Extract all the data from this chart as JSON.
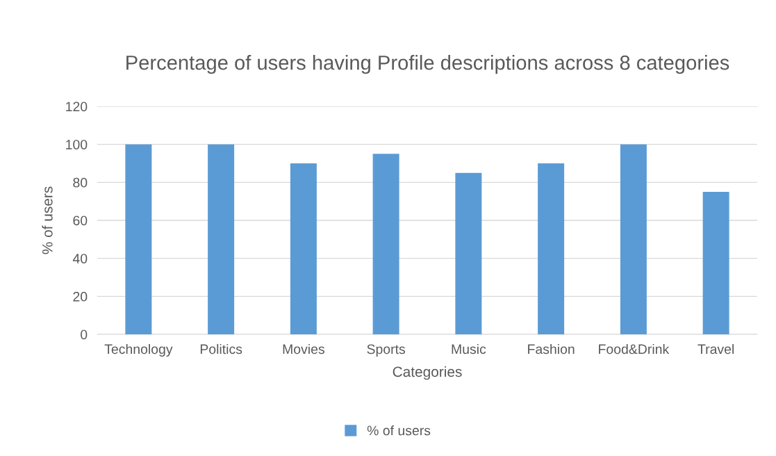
{
  "chart_data": {
    "type": "bar",
    "title": "Percentage of users having Profile descriptions across 8 categories",
    "xlabel": "Categories",
    "ylabel": "% of users",
    "categories": [
      "Technology",
      "Politics",
      "Movies",
      "Sports",
      "Music",
      "Fashion",
      "Food&Drink",
      "Travel"
    ],
    "series": [
      {
        "name": "% of users",
        "color": "#5b9bd5",
        "values": [
          100,
          100,
          90,
          95,
          85,
          90,
          100,
          75
        ]
      }
    ],
    "ylim": [
      0,
      120
    ],
    "yticks": [
      0,
      20,
      40,
      60,
      80,
      100,
      120
    ],
    "grid": "y",
    "legend": "bottom"
  }
}
